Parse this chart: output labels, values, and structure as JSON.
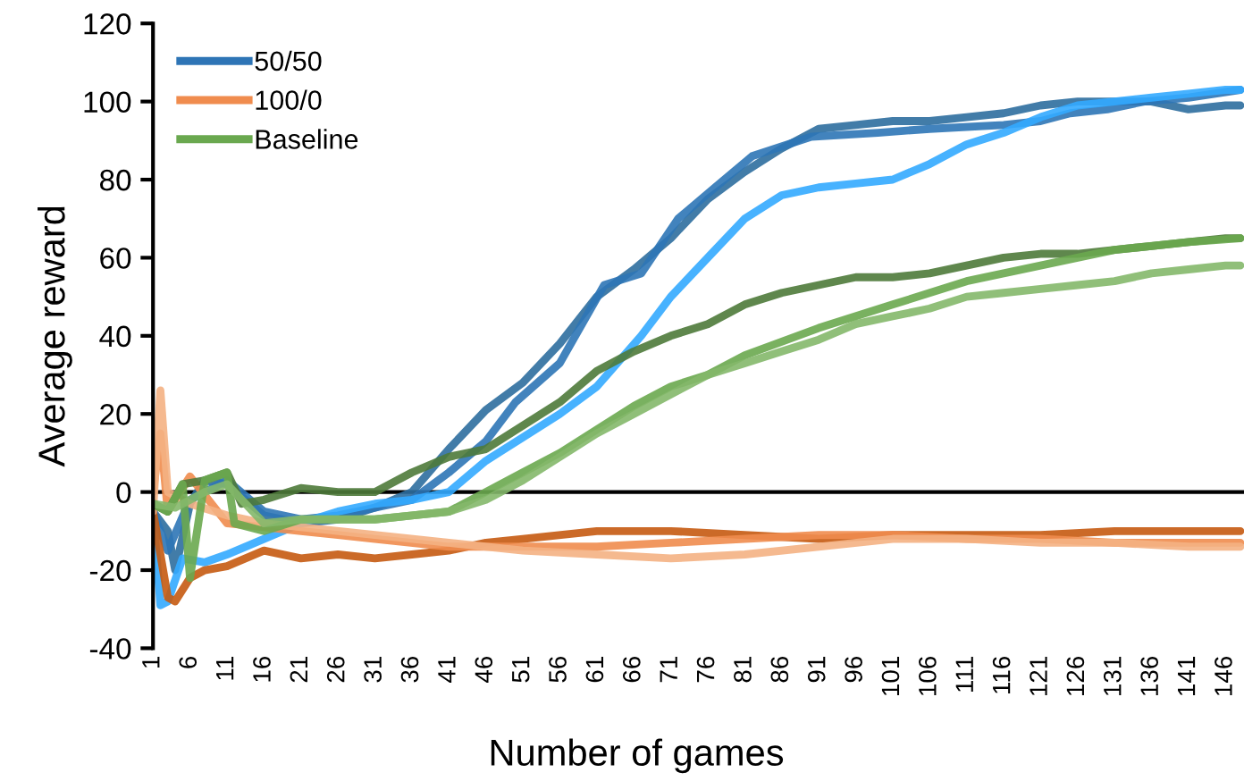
{
  "chart_data": {
    "type": "line",
    "xlabel": "Number of games",
    "ylabel": "Average reward",
    "xlim": [
      1,
      148.5
    ],
    "xticks": [
      1,
      6,
      11,
      16,
      21,
      26,
      31,
      36,
      41,
      46,
      51,
      56,
      61,
      66,
      71,
      76,
      81,
      86,
      91,
      96,
      101,
      106,
      111,
      116,
      121,
      126,
      131,
      136,
      141,
      146
    ],
    "ylim": [
      -40,
      120
    ],
    "yticks": [
      -40,
      -20,
      0,
      20,
      40,
      60,
      80,
      100,
      120
    ],
    "grid": false,
    "ref_lines": [
      {
        "axis": "y",
        "value": 0,
        "color": "#000000",
        "line_style": "solid"
      }
    ],
    "legend": "top left",
    "marker": "none",
    "line_style": "solid",
    "series": [
      {
        "color": "#2e6e9e",
        "x": [
          1,
          3,
          4,
          6,
          8,
          11,
          16,
          21,
          26,
          31,
          36,
          41,
          46,
          51,
          56,
          61,
          66,
          71,
          76,
          81,
          86,
          91,
          96,
          101,
          106,
          111,
          116,
          121,
          126,
          131,
          136,
          141,
          146,
          148
        ],
        "values": [
          -5,
          -10,
          -20,
          -3,
          3,
          2,
          -6,
          -8,
          -7,
          -4,
          0,
          11,
          21,
          28,
          38,
          50,
          57,
          65,
          75,
          82,
          88,
          93,
          94,
          95,
          95,
          96,
          97,
          99,
          100,
          100,
          100,
          98,
          99,
          99
        ]
      },
      {
        "name": "50/50",
        "color": "#2e75b6",
        "x": [
          1,
          3,
          6,
          11,
          16,
          21,
          26,
          31,
          36,
          41,
          46,
          50,
          56,
          62,
          67,
          72,
          77,
          82,
          90,
          99,
          106,
          116,
          121,
          125,
          130,
          135,
          141,
          148
        ],
        "values": [
          -5,
          -15,
          -2,
          3,
          -5,
          -7,
          -6,
          -4,
          -2,
          5,
          13,
          23,
          33,
          53,
          56,
          70,
          78,
          86,
          91,
          92,
          93,
          94,
          95,
          97,
          98,
          100,
          101,
          103
        ]
      },
      {
        "color": "#33aaff",
        "x": [
          1,
          2,
          3,
          5,
          8,
          11,
          16,
          21,
          26,
          31,
          36,
          41,
          46,
          51,
          56,
          61,
          67,
          71,
          76,
          81,
          86,
          91,
          96,
          101,
          106,
          111,
          116,
          121,
          126,
          131,
          136,
          141,
          146,
          148
        ],
        "values": [
          -5,
          -29,
          -28,
          -17,
          -18,
          -16,
          -12,
          -8,
          -5,
          -3,
          -2,
          0,
          8,
          14,
          20,
          27,
          40,
          50,
          60,
          70,
          76,
          78,
          79,
          80,
          84,
          89,
          92,
          96,
          99,
          100,
          101,
          102,
          103,
          103
        ]
      },
      {
        "color": "#c55a11",
        "x": [
          1,
          3,
          4,
          6,
          8,
          11,
          16,
          21,
          26,
          31,
          36,
          41,
          46,
          51,
          61,
          71,
          81,
          91,
          101,
          111,
          121,
          131,
          141,
          148
        ],
        "values": [
          -5,
          -27,
          -28,
          -22,
          -20,
          -19,
          -15,
          -17,
          -16,
          -17,
          -16,
          -15,
          -13,
          -12,
          -10,
          -10,
          -11,
          -12,
          -11,
          -11,
          -11,
          -10,
          -10,
          -10
        ]
      },
      {
        "name": "100/0",
        "color": "#f08c4e",
        "x": [
          1,
          2,
          3,
          6,
          11,
          16,
          21,
          26,
          31,
          41,
          51,
          61,
          71,
          81,
          91,
          101,
          111,
          121,
          131,
          141,
          148
        ],
        "values": [
          0,
          15,
          -5,
          4,
          -8,
          -9,
          -10,
          -11,
          -12,
          -14,
          -14,
          -14,
          -13,
          -12,
          -11,
          -11,
          -12,
          -12,
          -13,
          -13,
          -13
        ]
      },
      {
        "color": "#f4b183",
        "x": [
          1,
          2,
          3,
          6,
          11,
          16,
          21,
          31,
          41,
          51,
          61,
          71,
          81,
          91,
          101,
          111,
          121,
          131,
          141,
          148
        ],
        "values": [
          -5,
          26,
          0,
          -3,
          -6,
          -8,
          -9,
          -11,
          -13,
          -15,
          -16,
          -17,
          -16,
          -14,
          -12,
          -12,
          -13,
          -13,
          -14,
          -14
        ]
      },
      {
        "color": "#4e7a3a",
        "x": [
          1,
          3,
          5,
          8,
          11,
          13,
          16,
          21,
          26,
          31,
          36,
          41,
          46,
          51,
          56,
          61,
          66,
          71,
          76,
          81,
          86,
          91,
          96,
          101,
          106,
          111,
          116,
          121,
          126,
          131,
          136,
          141,
          146,
          148
        ],
        "values": [
          -3,
          -5,
          2,
          3,
          5,
          -3,
          -2,
          1,
          0,
          0,
          5,
          9,
          11,
          17,
          23,
          31,
          36,
          40,
          43,
          48,
          51,
          53,
          55,
          55,
          56,
          58,
          60,
          61,
          61,
          62,
          63,
          64,
          65,
          65
        ]
      },
      {
        "name": "Baseline",
        "color": "#6aa84f",
        "x": [
          1,
          3,
          5,
          6,
          8,
          11,
          12,
          16,
          21,
          26,
          31,
          36,
          41,
          46,
          51,
          56,
          61,
          66,
          71,
          76,
          81,
          91,
          101,
          111,
          121,
          131,
          141,
          148
        ],
        "values": [
          -3,
          -5,
          2,
          -22,
          3,
          5,
          -8,
          -10,
          -7,
          -7,
          -7,
          -6,
          -5,
          0,
          5,
          10,
          16,
          22,
          27,
          30,
          35,
          42,
          48,
          54,
          58,
          62,
          64,
          65
        ]
      },
      {
        "color": "#84b86a",
        "x": [
          1,
          4,
          8,
          11,
          16,
          21,
          26,
          31,
          36,
          41,
          46,
          51,
          56,
          61,
          66,
          71,
          76,
          81,
          86,
          91,
          96,
          101,
          106,
          111,
          116,
          121,
          126,
          131,
          136,
          141,
          146,
          148
        ],
        "values": [
          -3,
          -4,
          0,
          2,
          -8,
          -7,
          -7,
          -7,
          -6,
          -5,
          -2,
          3,
          9,
          15,
          20,
          25,
          30,
          33,
          36,
          39,
          43,
          45,
          47,
          50,
          51,
          52,
          53,
          54,
          56,
          57,
          58,
          58
        ]
      }
    ]
  }
}
